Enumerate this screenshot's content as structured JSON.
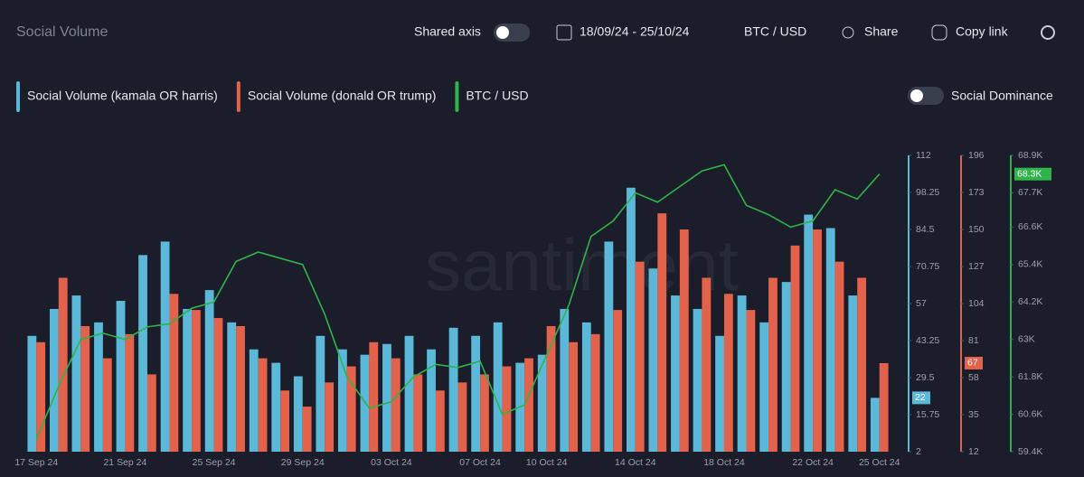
{
  "header": {
    "title": "Social Volume",
    "shared_axis": "Shared axis",
    "date_range": "18/09/24 - 25/10/24",
    "pair": "BTC / USD",
    "share": "Share",
    "copy_link": "Copy link",
    "social_dominance": "Social Dominance"
  },
  "chart_data": {
    "type": "bar-line",
    "watermark": "santiment",
    "categories": [
      "17 Sep 24",
      null,
      null,
      null,
      "21 Sep 24",
      null,
      null,
      null,
      "25 Sep 24",
      null,
      null,
      null,
      "29 Sep 24",
      null,
      null,
      null,
      "03 Oct 24",
      null,
      null,
      null,
      "07 Oct 24",
      null,
      null,
      "10 Oct 24",
      null,
      null,
      null,
      "14 Oct 24",
      null,
      null,
      null,
      "18 Oct 24",
      null,
      null,
      null,
      "22 Oct 24",
      null,
      null,
      "25 Oct 24"
    ],
    "ylim": [
      2,
      112
    ],
    "yticks": [
      2,
      15.75,
      29.5,
      43.25,
      57,
      70.75,
      84.5,
      98.25,
      112
    ],
    "y2lim": [
      12,
      196
    ],
    "y2ticks": [
      12,
      35,
      58,
      81,
      104,
      127,
      150,
      173,
      196
    ],
    "y3lim": [
      59400,
      68900
    ],
    "y3ticks": [
      {
        "value": 59400,
        "label": "59.4K"
      },
      {
        "value": 60600,
        "label": "60.6K"
      },
      {
        "value": 61800,
        "label": "61.8K"
      },
      {
        "value": 63000,
        "label": "63K"
      },
      {
        "value": 64200,
        "label": "64.2K"
      },
      {
        "value": 65400,
        "label": "65.4K"
      },
      {
        "value": 66600,
        "label": "66.6K"
      },
      {
        "value": 67700,
        "label": "67.7K"
      },
      {
        "value": 68900,
        "label": "68.9K"
      }
    ],
    "series": [
      {
        "name": "Social Volume (kamala OR harris)",
        "color": "#5bb8d9",
        "kind": "bar",
        "axis": "y",
        "current_label": "22",
        "values": [
          45,
          55,
          60,
          50,
          58,
          75,
          80,
          55,
          62,
          50,
          40,
          35,
          30,
          45,
          40,
          38,
          42,
          45,
          40,
          48,
          45,
          50,
          35,
          38,
          55,
          50,
          80,
          100,
          70,
          60,
          55,
          45,
          60,
          50,
          65,
          90,
          85,
          60,
          22
        ]
      },
      {
        "name": "Social Volume (donald OR trump)",
        "color": "#e2624c",
        "kind": "bar",
        "axis": "y2",
        "current_label": "67",
        "values": [
          80,
          120,
          90,
          70,
          85,
          60,
          110,
          100,
          95,
          90,
          70,
          50,
          40,
          55,
          65,
          80,
          70,
          60,
          50,
          55,
          60,
          65,
          70,
          90,
          80,
          85,
          100,
          130,
          160,
          150,
          120,
          110,
          100,
          120,
          140,
          150,
          130,
          120,
          67
        ]
      },
      {
        "name": "BTC / USD",
        "color": "#2fb34a",
        "kind": "line",
        "axis": "y3",
        "current_label": "68.3K",
        "values": [
          59800,
          61500,
          63000,
          63200,
          63000,
          63400,
          63500,
          64000,
          64200,
          65500,
          65800,
          65600,
          65400,
          63800,
          61800,
          60800,
          61000,
          61800,
          62200,
          62100,
          62300,
          60600,
          60900,
          62500,
          64100,
          66300,
          66800,
          67700,
          67400,
          67900,
          68400,
          68600,
          67300,
          67000,
          66600,
          66800,
          67800,
          67500,
          68300
        ]
      }
    ]
  }
}
